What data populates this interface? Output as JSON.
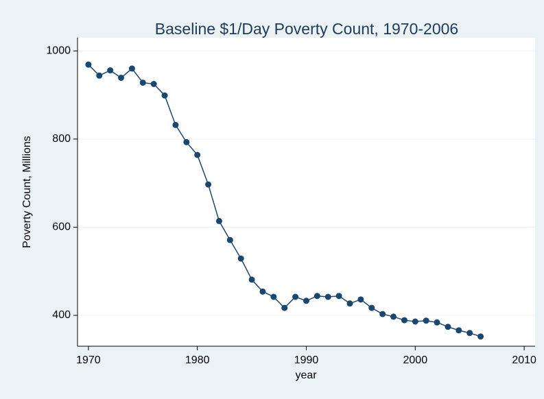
{
  "chart_data": {
    "type": "line",
    "title": "Baseline $1/Day Poverty Count, 1970-2006",
    "x_label": "year",
    "y_label": "Poverty Count, Millions",
    "x": [
      1970,
      1971,
      1972,
      1973,
      1974,
      1975,
      1976,
      1977,
      1978,
      1979,
      1980,
      1981,
      1982,
      1983,
      1984,
      1985,
      1986,
      1987,
      1988,
      1989,
      1990,
      1991,
      1992,
      1993,
      1994,
      1995,
      1996,
      1997,
      1998,
      1999,
      2000,
      2001,
      2002,
      2003,
      2004,
      2005,
      2006
    ],
    "series": [
      {
        "name": "Poverty Count",
        "color": "#1a476f",
        "values": [
          969,
          944,
          956,
          939,
          960,
          928,
          925,
          899,
          832,
          793,
          764,
          697,
          614,
          571,
          529,
          481,
          454,
          442,
          417,
          442,
          433,
          444,
          442,
          444,
          427,
          436,
          417,
          403,
          397,
          389,
          386,
          388,
          384,
          374,
          366,
          360,
          352
        ]
      }
    ],
    "xlim": [
      1969,
      2011
    ],
    "xticks": [
      1970,
      1980,
      1990,
      2000,
      2010
    ],
    "ylim": [
      330,
      1030
    ],
    "yticks": [
      400,
      600,
      800,
      1000
    ],
    "grid": true
  }
}
